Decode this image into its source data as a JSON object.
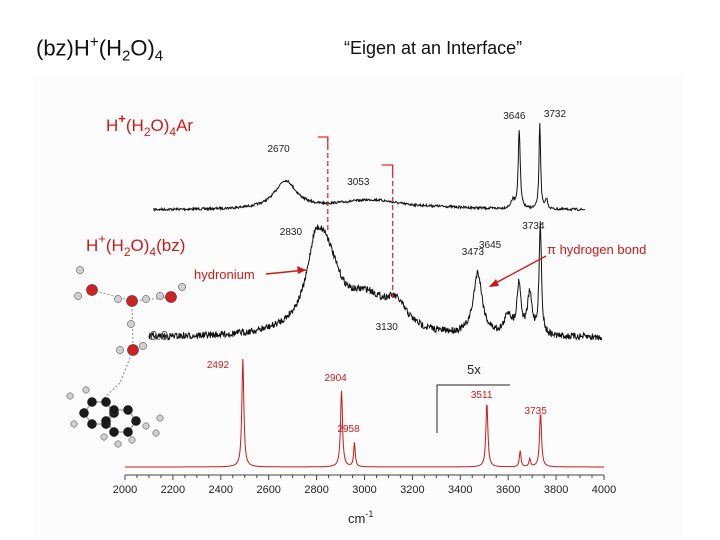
{
  "slide": {
    "title_prefix": "(bz)H",
    "title_sup": "+",
    "title_mid": "(H",
    "title_sub1": "2",
    "title_mid2": "O)",
    "title_sub2": "4",
    "subtitle": "“Eigen at an Interface”"
  },
  "panel_labels": {
    "top": "H+(H2O)4Ar",
    "middle": "H+(H2O)4(bz)",
    "hydronium": "hydronium",
    "pi_bond": "π hydrogen bond",
    "scale": "5x",
    "small_value": "0.0"
  },
  "chart_data": {
    "type": "line",
    "xlabel": "cm-1",
    "xlim": [
      2000,
      4000
    ],
    "x_ticks": [
      2000,
      2200,
      2400,
      2600,
      2800,
      3000,
      3200,
      3400,
      3600,
      3800,
      4000
    ],
    "series": [
      {
        "color": "#111111",
        "peaks": [
          {
            "x": 2670,
            "label": "2670"
          },
          {
            "x": 3053,
            "label": "3053"
          },
          {
            "x": 3646,
            "label": "3646"
          },
          {
            "x": 3732,
            "label": "3732"
          }
        ]
      },
      {
        "color": "#111111",
        "peaks": [
          {
            "x": 2830,
            "label": "2830"
          },
          {
            "x": 3130,
            "label": "3130"
          },
          {
            "x": 3473,
            "label": "3473"
          },
          {
            "x": 3645,
            "label": "3645"
          },
          {
            "x": 3734,
            "label": "3734"
          }
        ]
      },
      {
        "color": "#cc1a1a",
        "peaks": [
          {
            "x": 2492,
            "label": "2492"
          },
          {
            "x": 2904,
            "label": "2904"
          },
          {
            "x": 2958,
            "label": "2958"
          },
          {
            "x": 3511,
            "label": "3511"
          },
          {
            "x": 3735,
            "label": "3735"
          }
        ]
      }
    ]
  }
}
